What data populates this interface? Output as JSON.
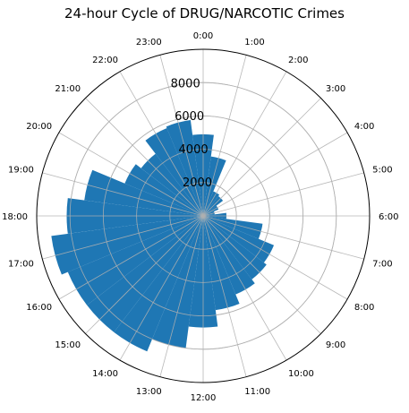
{
  "chart_data": {
    "type": "bar",
    "subtype": "polar",
    "title": "24-hour Cycle of DRUG/NARCOTIC Crimes",
    "categories": [
      "0:00",
      "1:00",
      "2:00",
      "3:00",
      "4:00",
      "5:00",
      "6:00",
      "7:00",
      "8:00",
      "9:00",
      "10:00",
      "11:00",
      "12:00",
      "13:00",
      "14:00",
      "15:00",
      "16:00",
      "17:00",
      "18:00",
      "19:00",
      "20:00",
      "21:00",
      "22:00",
      "23:00"
    ],
    "values": [
      4900,
      3600,
      1600,
      1500,
      1000,
      700,
      1400,
      3600,
      4600,
      4800,
      5100,
      5700,
      6700,
      8000,
      8800,
      8800,
      8800,
      9200,
      8200,
      7200,
      5100,
      4700,
      5700,
      5800
    ],
    "radial_ticks": [
      2000,
      4000,
      6000,
      8000
    ],
    "rlim": [
      0,
      10000
    ],
    "direction": "clockwise",
    "zero_location": "top",
    "grid": true,
    "bar_color": "#1f77b4"
  }
}
